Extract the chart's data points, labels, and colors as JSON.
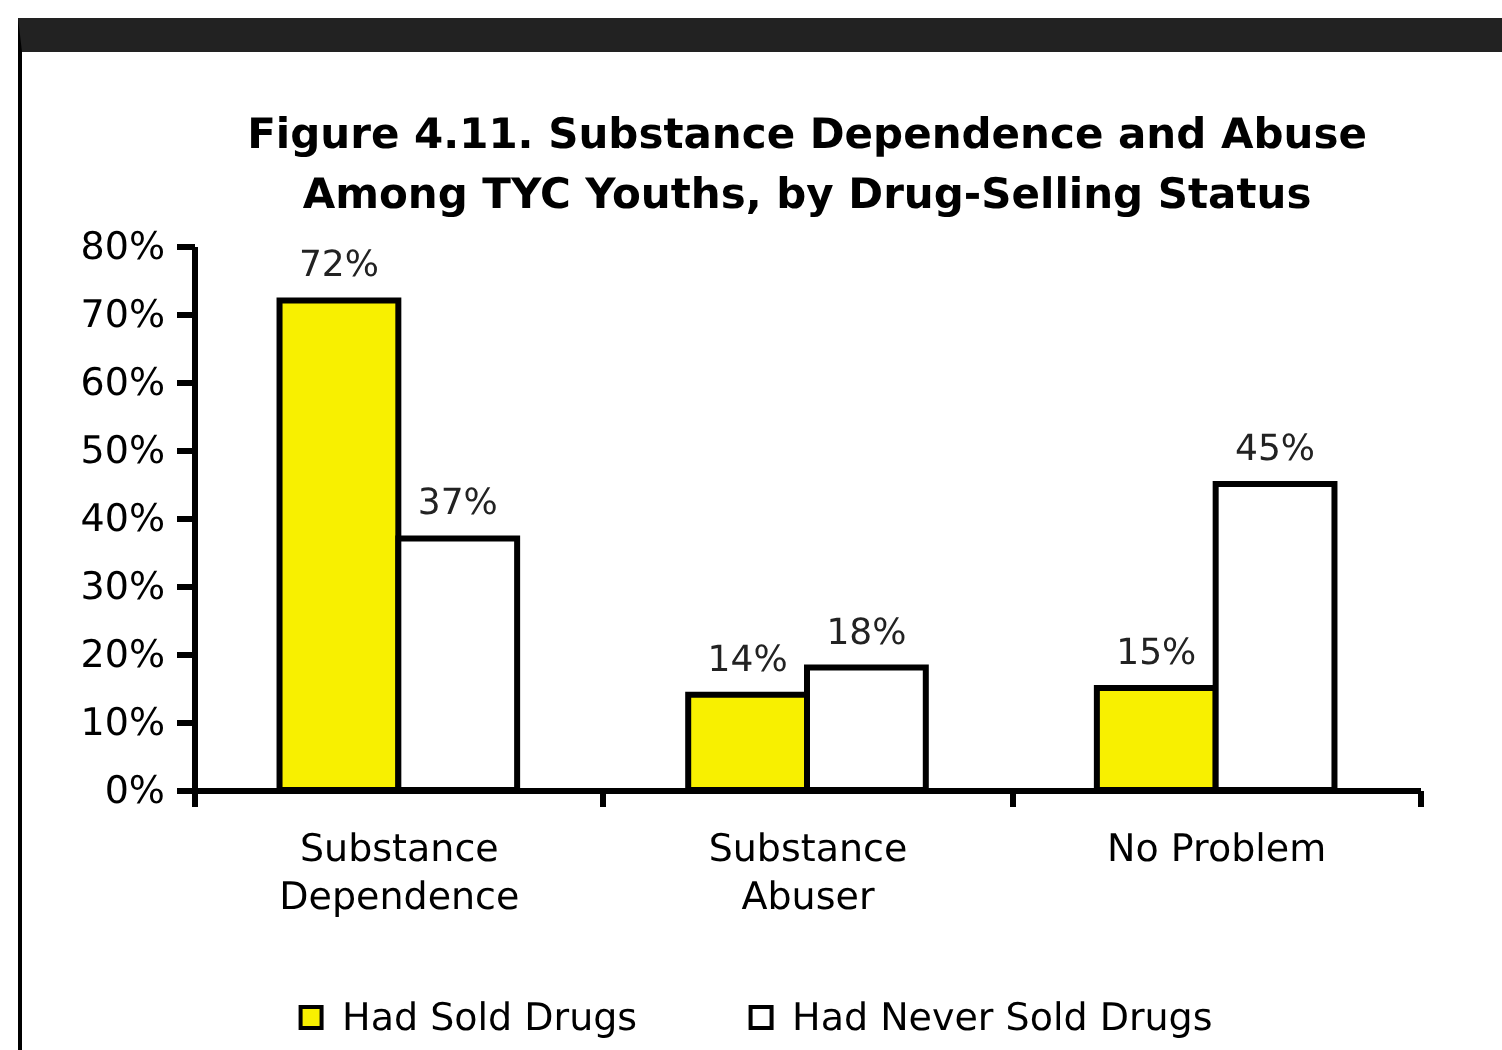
{
  "chart_data": {
    "type": "bar",
    "title": "Figure 4.11. Substance Dependence and Abuse Among TYC Youths, by Drug-Selling Status",
    "categories": [
      "Substance Dependence",
      "Substance Abuser",
      "No Problem"
    ],
    "series": [
      {
        "name": "Had Sold Drugs",
        "color": "#f8f000",
        "values": [
          72,
          14,
          15
        ],
        "value_labels": [
          "72%",
          "14%",
          "15%"
        ]
      },
      {
        "name": "Had Never Sold Drugs",
        "color": "#ffffff",
        "values": [
          37,
          18,
          45
        ],
        "value_labels": [
          "37%",
          "18%",
          "45%"
        ]
      }
    ],
    "ylim": [
      0,
      80
    ],
    "yticks": [
      {
        "value": 0,
        "label": "0%"
      },
      {
        "value": 10,
        "label": "10%"
      },
      {
        "value": 20,
        "label": "20%"
      },
      {
        "value": 30,
        "label": "30%"
      },
      {
        "value": 40,
        "label": "40%"
      },
      {
        "value": 50,
        "label": "50%"
      },
      {
        "value": 60,
        "label": "60%"
      },
      {
        "value": 70,
        "label": "70%"
      },
      {
        "value": 80,
        "label": "80%"
      }
    ],
    "grid": false,
    "legend": "bottom"
  }
}
